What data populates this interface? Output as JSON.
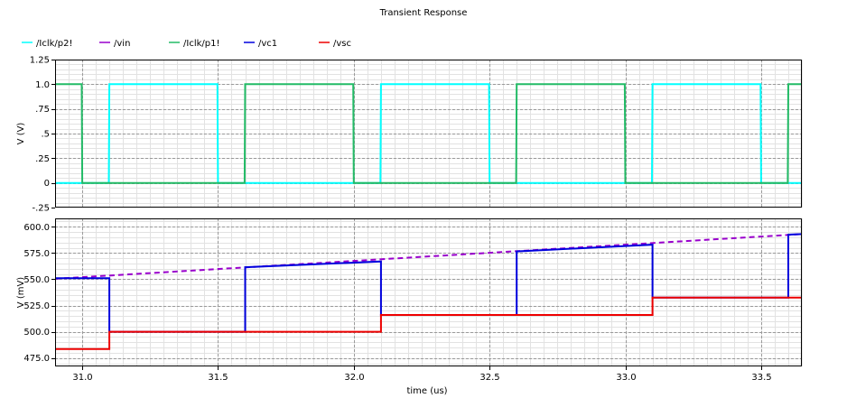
{
  "chart_data": [
    {
      "type": "line",
      "title": "Transient Response",
      "xlabel": "time (us)",
      "ylabel": "V (V)",
      "xlim": [
        30.9,
        33.65
      ],
      "ylim": [
        -0.25,
        1.25
      ],
      "yticks": [
        -0.25,
        0,
        0.25,
        0.5,
        0.75,
        1.0,
        1.25
      ],
      "ytick_labels": [
        "-.25",
        "0",
        ".25",
        ".5",
        ".75",
        "1.0",
        "1.25"
      ],
      "grid": true,
      "series": [
        {
          "name": "/Iclk/p2!",
          "color": "#00ffff",
          "x": [
            30.9,
            31.098,
            31.1,
            31.498,
            31.5,
            31.9,
            32.098,
            32.1,
            32.498,
            32.5,
            32.9,
            33.098,
            33.1,
            33.498,
            33.5,
            33.65
          ],
          "y": [
            0,
            0,
            1.0,
            1.0,
            0,
            0,
            0,
            1.0,
            1.0,
            0,
            0,
            0,
            1.0,
            1.0,
            0,
            0
          ]
        },
        {
          "name": "/Iclk/p1!",
          "color": "#22bb66",
          "x": [
            30.9,
            30.998,
            31.0,
            31.598,
            31.6,
            31.998,
            32.0,
            32.598,
            32.6,
            32.998,
            33.0,
            33.598,
            33.6,
            33.65
          ],
          "y": [
            1.0,
            1.0,
            0,
            0,
            1.0,
            1.0,
            0,
            0,
            1.0,
            1.0,
            0,
            0,
            1.0,
            1.0
          ]
        }
      ]
    },
    {
      "type": "line",
      "xlabel": "time (us)",
      "ylabel": "V (mV)",
      "xlim": [
        30.9,
        33.65
      ],
      "ylim": [
        467,
        608
      ],
      "yticks": [
        475,
        500,
        525,
        550,
        575,
        600
      ],
      "ytick_labels": [
        "475.0",
        "500.0",
        "525.0",
        "550.0",
        "575.0",
        "600.0"
      ],
      "xticks": [
        31.0,
        31.5,
        32.0,
        32.5,
        33.0,
        33.5
      ],
      "xtick_labels": [
        "31.0",
        "31.5",
        "32.0",
        "32.5",
        "33.0",
        "33.5"
      ],
      "grid": true,
      "series": [
        {
          "name": "/vin",
          "color": "#9900cc",
          "dashed": true,
          "x": [
            30.9,
            33.65
          ],
          "y": [
            550.5,
            593
          ]
        },
        {
          "name": "/vc1",
          "color": "#0000dd",
          "x": [
            30.9,
            31.1,
            31.1,
            31.6,
            31.6,
            32.1,
            32.1,
            32.6,
            32.6,
            33.1,
            33.1,
            33.6,
            33.6,
            33.65
          ],
          "y": [
            551,
            551,
            500,
            500,
            561.5,
            567,
            516,
            516,
            576.5,
            583,
            532.5,
            532.5,
            592.5,
            593
          ]
        },
        {
          "name": "/vsc",
          "color": "#ee0000",
          "x": [
            30.9,
            31.1,
            31.1,
            31.6,
            31.6,
            32.1,
            32.1,
            32.6,
            32.6,
            33.1,
            33.1,
            33.6,
            33.6,
            33.65
          ],
          "y": [
            483.5,
            483.5,
            500,
            500,
            500,
            500,
            516,
            516,
            516,
            516,
            532.5,
            532.5,
            532.5,
            532.5
          ]
        }
      ]
    }
  ],
  "legend": [
    {
      "name": "/Iclk/p2!",
      "color": "#00ffff"
    },
    {
      "name": "/vin",
      "color": "#9900cc"
    },
    {
      "name": "/Iclk/p1!",
      "color": "#22bb66"
    },
    {
      "name": "/vc1",
      "color": "#0000dd"
    },
    {
      "name": "/vsc",
      "color": "#ee0000"
    }
  ]
}
